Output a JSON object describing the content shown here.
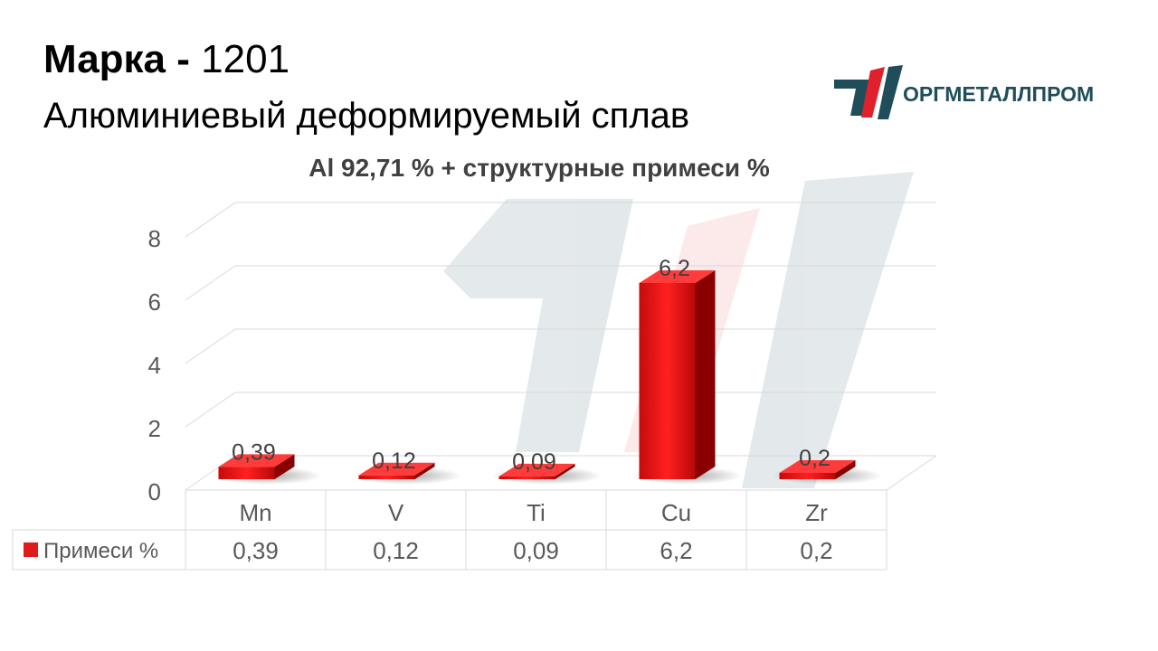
{
  "header": {
    "grade_label": "Марка",
    "grade_separator": "-",
    "grade_value": "1201",
    "subtitle": "Алюминиевый деформируемый сплав"
  },
  "logo": {
    "text": "ОРГМЕТАЛЛПРОМ",
    "colors": {
      "teal": "#1f4e5a",
      "red": "#e0202a"
    }
  },
  "chart_data": {
    "type": "bar",
    "title": "Al 92,71 % + структурные примеси %",
    "categories": [
      "Mn",
      "V",
      "Ti",
      "Cu",
      "Zr"
    ],
    "series": [
      {
        "name": "Примеси %",
        "values": [
          0.39,
          0.12,
          0.09,
          6.2,
          0.2
        ],
        "labels": [
          "0,39",
          "0,12",
          "0,09",
          "6,2",
          "0,2"
        ],
        "color": "#e01b1b"
      }
    ],
    "ylim": [
      0,
      8
    ],
    "yticks": [
      0,
      2,
      4,
      6,
      8
    ],
    "xlabel": "",
    "ylabel": "",
    "grid": true,
    "legend": "data-table-left",
    "data_table": true
  }
}
